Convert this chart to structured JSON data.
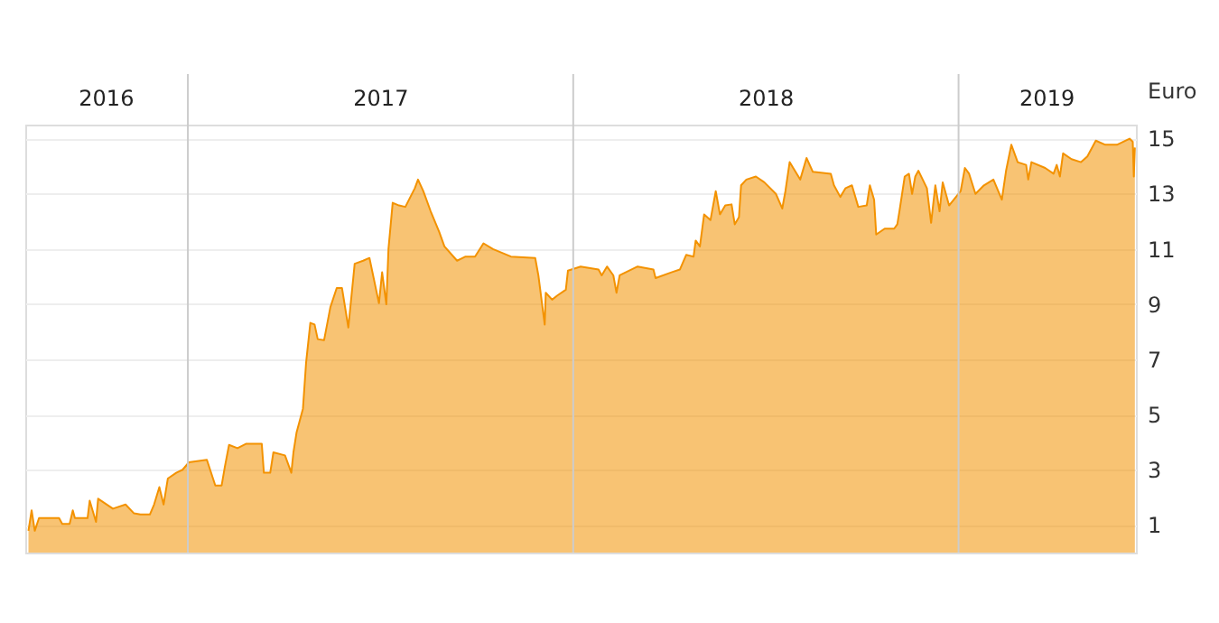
{
  "chart_data": {
    "type": "area",
    "ylabel": "Euro",
    "x": [
      "2016-08-03",
      "2016-08-06",
      "2016-08-09",
      "2016-08-13",
      "2016-09-01",
      "2016-09-04",
      "2016-09-11",
      "2016-09-14",
      "2016-09-16",
      "2016-09-28",
      "2016-09-30",
      "2016-10-06",
      "2016-10-08",
      "2016-10-22",
      "2016-11-03",
      "2016-11-11",
      "2016-11-17",
      "2016-11-26",
      "2016-11-30",
      "2016-12-05",
      "2016-12-09",
      "2016-12-13",
      "2016-12-21",
      "2016-12-27",
      "2017-01-02",
      "2017-01-19",
      "2017-01-27",
      "2017-02-02",
      "2017-02-05",
      "2017-02-09",
      "2017-02-17",
      "2017-02-25",
      "2017-03-12",
      "2017-03-14",
      "2017-03-20",
      "2017-03-23",
      "2017-04-03",
      "2017-04-09",
      "2017-04-11",
      "2017-04-14",
      "2017-04-20",
      "2017-04-23",
      "2017-04-27",
      "2017-05-01",
      "2017-05-04",
      "2017-05-10",
      "2017-05-16",
      "2017-05-22",
      "2017-05-27",
      "2017-06-02",
      "2017-06-08",
      "2017-06-16",
      "2017-06-22",
      "2017-07-01",
      "2017-07-04",
      "2017-07-08",
      "2017-07-10",
      "2017-07-14",
      "2017-07-20",
      "2017-07-26",
      "2017-08-04",
      "2017-08-07",
      "2017-08-12",
      "2017-08-19",
      "2017-08-27",
      "2017-09-01",
      "2017-09-13",
      "2017-09-21",
      "2017-09-30",
      "2017-10-08",
      "2017-10-17",
      "2017-11-03",
      "2017-11-26",
      "2017-11-29",
      "2017-12-05",
      "2017-12-06",
      "2017-12-12",
      "2017-12-17",
      "2017-12-25",
      "2017-12-27",
      "2018-01-08",
      "2018-01-25",
      "2018-01-28",
      "2018-02-02",
      "2018-02-08",
      "2018-02-11",
      "2018-02-14",
      "2018-03-03",
      "2018-03-18",
      "2018-03-20",
      "2018-04-04",
      "2018-04-12",
      "2018-04-18",
      "2018-04-25",
      "2018-04-27",
      "2018-05-01",
      "2018-05-05",
      "2018-05-11",
      "2018-05-16",
      "2018-05-20",
      "2018-05-25",
      "2018-05-31",
      "2018-06-03",
      "2018-06-07",
      "2018-06-09",
      "2018-06-14",
      "2018-06-23",
      "2018-07-01",
      "2018-07-12",
      "2018-07-18",
      "2018-07-21",
      "2018-07-25",
      "2018-08-04",
      "2018-08-10",
      "2018-08-16",
      "2018-09-02",
      "2018-09-05",
      "2018-09-11",
      "2018-09-16",
      "2018-09-22",
      "2018-09-28",
      "2018-10-06",
      "2018-10-09",
      "2018-10-13",
      "2018-10-15",
      "2018-10-23",
      "2018-11-01",
      "2018-11-04",
      "2018-11-06",
      "2018-11-11",
      "2018-11-15",
      "2018-11-18",
      "2018-11-21",
      "2018-11-24",
      "2018-12-02",
      "2018-12-06",
      "2018-12-10",
      "2018-12-14",
      "2018-12-17",
      "2018-12-23",
      "2019-01-03",
      "2019-01-07",
      "2019-01-11",
      "2019-01-17",
      "2019-01-25",
      "2019-02-03",
      "2019-02-11",
      "2019-02-15",
      "2019-02-20",
      "2019-02-26",
      "2019-03-06",
      "2019-03-08",
      "2019-03-11",
      "2019-03-24",
      "2019-04-01",
      "2019-04-04",
      "2019-04-07",
      "2019-04-10",
      "2019-04-18",
      "2019-04-27",
      "2019-05-03",
      "2019-05-11",
      "2019-05-20",
      "2019-05-31",
      "2019-06-12",
      "2019-06-15",
      "2019-06-16",
      "2019-06-17"
    ],
    "series": [
      {
        "color": "#f39200",
        "values": [
          0.79,
          1.53,
          0.79,
          1.25,
          1.25,
          1.04,
          1.04,
          1.53,
          1.25,
          1.25,
          1.88,
          1.11,
          1.95,
          1.59,
          1.74,
          1.42,
          1.38,
          1.38,
          1.74,
          2.37,
          1.74,
          2.68,
          2.89,
          3.0,
          3.27,
          3.36,
          2.43,
          2.43,
          3.1,
          3.9,
          3.78,
          3.94,
          3.94,
          2.89,
          2.89,
          3.63,
          3.52,
          2.89,
          3.63,
          4.36,
          5.21,
          6.89,
          8.32,
          8.26,
          7.73,
          7.69,
          8.89,
          9.58,
          9.58,
          8.15,
          10.46,
          10.57,
          10.67,
          9.03,
          10.15,
          8.99,
          10.99,
          12.67,
          12.57,
          12.52,
          13.2,
          13.51,
          13.09,
          12.36,
          11.62,
          11.09,
          10.57,
          10.72,
          10.72,
          11.2,
          10.99,
          10.72,
          10.67,
          10.04,
          8.26,
          9.41,
          9.16,
          9.31,
          9.52,
          10.21,
          10.36,
          10.25,
          10.04,
          10.36,
          10.04,
          9.41,
          10.04,
          10.36,
          10.25,
          9.94,
          10.15,
          10.25,
          10.78,
          10.72,
          11.3,
          11.09,
          12.25,
          12.04,
          13.09,
          12.25,
          12.57,
          12.61,
          11.89,
          12.15,
          13.3,
          13.51,
          13.62,
          13.41,
          12.99,
          12.46,
          13.09,
          14.14,
          13.51,
          14.29,
          13.79,
          13.72,
          13.3,
          12.88,
          13.2,
          13.3,
          12.52,
          12.57,
          13.3,
          12.78,
          11.52,
          11.73,
          11.73,
          11.89,
          12.36,
          13.62,
          13.72,
          12.99,
          13.62,
          13.83,
          13.2,
          11.94,
          13.3,
          12.36,
          13.41,
          12.57,
          13.09,
          13.93,
          13.72,
          12.99,
          13.3,
          13.51,
          12.78,
          13.83,
          14.77,
          14.14,
          14.04,
          13.51,
          14.14,
          13.93,
          13.72,
          14.04,
          13.62,
          14.46,
          14.25,
          14.14,
          14.35,
          14.92,
          14.77,
          14.77,
          14.99,
          14.88,
          13.62,
          14.67
        ]
      }
    ],
    "xlim": [
      "2016-07-31",
      "2019-06-18"
    ],
    "xticks": [
      {
        "value": "2016-10-15",
        "label": "2016"
      },
      {
        "value": "2017-07-02",
        "label": "2017"
      },
      {
        "value": "2018-07-02",
        "label": "2018"
      },
      {
        "value": "2019-03-25",
        "label": "2019"
      }
    ],
    "ylim": [
      0,
      15.5
    ],
    "yticks": [
      1,
      3,
      5,
      7,
      9,
      11,
      13,
      15
    ],
    "grid": "y",
    "ref_lines": [
      {
        "axis": "x",
        "value": "2017-01-01",
        "color": "#cccccc"
      },
      {
        "axis": "x",
        "value": "2018-01-01",
        "color": "#cccccc"
      },
      {
        "axis": "x",
        "value": "2019-01-01",
        "color": "#cccccc"
      }
    ]
  }
}
